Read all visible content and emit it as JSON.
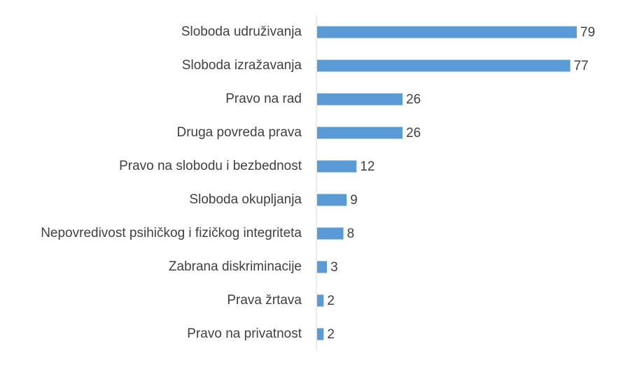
{
  "chart_data": {
    "type": "bar",
    "orientation": "horizontal",
    "categories": [
      "Sloboda udruživanja",
      "Sloboda izražavanja",
      "Pravo na rad",
      "Druga povreda prava",
      "Pravo na slobodu i bezbednost",
      "Sloboda okupljanja",
      "Nepovredivost psihičkog i fizičkog integriteta",
      "Zabrana diskriminacije",
      "Prava žrtava",
      "Pravo na privatnost"
    ],
    "values": [
      79,
      77,
      26,
      26,
      12,
      9,
      8,
      3,
      2,
      2
    ],
    "data_labels": true,
    "bar_color": "#5b9bd5",
    "axis_line_color": "#d9d9d9",
    "text_color": "#404040",
    "grid": false,
    "legend": "none"
  }
}
